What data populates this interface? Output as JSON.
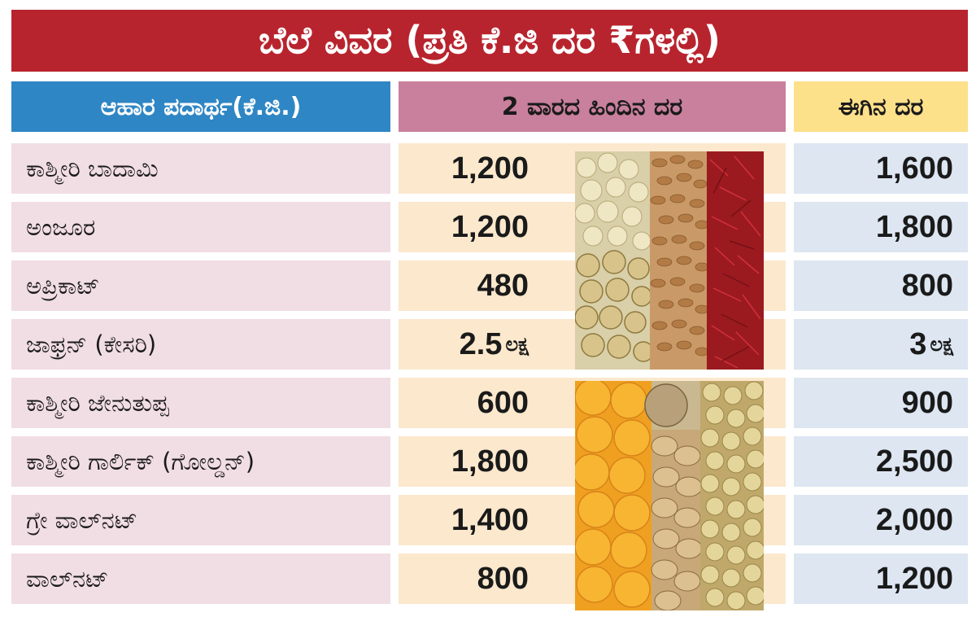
{
  "title": "ಬೆಲೆ ವಿವರ (ಪ್ರತಿ ಕೆ.ಜಿ ದರ ₹ಗಳಲ್ಲಿ)",
  "headers": {
    "item": "ಆಹಾರ ಪದಾರ್ಥ(ಕೆ.ಜಿ.)",
    "previous": "2 ವಾರದ ಹಿಂದಿನ ದರ",
    "current": "ಈಗಿನ ದರ"
  },
  "colors": {
    "title_bg": "#b8242e",
    "item_header_bg": "#2f86c4",
    "previous_header_bg": "#c9809c",
    "current_header_bg": "#fde08a",
    "item_cell_bg": "#f1dde4",
    "previous_cell_bg": "#fbe8cd",
    "current_cell_bg": "#dde6f1"
  },
  "rows": [
    {
      "item": "ಕಾಶ್ಮೀರಿ ಬಾದಾಮಿ",
      "previous": "1,200",
      "previous_unit": "",
      "current": "1,600",
      "current_unit": ""
    },
    {
      "item": "ಅಂಜೂರ",
      "previous": "1,200",
      "previous_unit": "",
      "current": "1,800",
      "current_unit": ""
    },
    {
      "item": "ಅಪ್ರಿಕಾಟ್",
      "previous": "480",
      "previous_unit": "",
      "current": "800",
      "current_unit": ""
    },
    {
      "item": "ಜಾಫ್ರನ್ (ಕೇಸರಿ)",
      "previous": "2.5",
      "previous_unit": "ಲಕ್ಷ",
      "current": "3",
      "current_unit": "ಲಕ್ಷ"
    },
    {
      "item": "ಕಾಶ್ಮೀರಿ ಜೇನುತುಪ್ಪ",
      "previous": "600",
      "previous_unit": "",
      "current": "900",
      "current_unit": ""
    },
    {
      "item": "ಕಾಶ್ಮೀರಿ ಗಾರ್ಲಿಕ್ (ಗೋಲ್ಡನ್)",
      "previous": "1,800",
      "previous_unit": "",
      "current": "2,500",
      "current_unit": ""
    },
    {
      "item": "ಗ್ರೇ ವಾಲ್‌ನಟ್",
      "previous": "1,400",
      "previous_unit": "",
      "current": "2,000",
      "current_unit": ""
    },
    {
      "item": "ವಾಲ್‌ನಟ್",
      "previous": "800",
      "previous_unit": "",
      "current": "1,200",
      "current_unit": ""
    }
  ],
  "photos": [
    "dry-fruits-photo",
    "apricot-walnut-photo"
  ]
}
